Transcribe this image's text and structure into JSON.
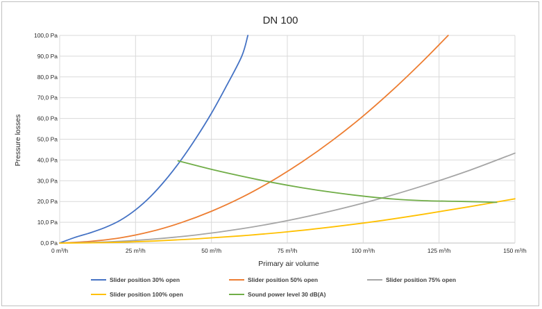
{
  "chart_data": {
    "type": "line",
    "title": "DN 100",
    "xlabel": "Primary air volume",
    "ylabel": "Pressure losses",
    "xlim": [
      0,
      150
    ],
    "ylim": [
      0,
      100
    ],
    "x_ticks": [
      0,
      25,
      50,
      75,
      100,
      125,
      150
    ],
    "x_tick_labels": [
      "0 m³/h",
      "25 m³/h",
      "50 m³/h",
      "75 m³/h",
      "100 m³/h",
      "125 m³/h",
      "150 m³/h"
    ],
    "y_ticks": [
      0,
      10,
      20,
      30,
      40,
      50,
      60,
      70,
      80,
      90,
      100
    ],
    "y_tick_labels": [
      "0,0 Pa",
      "10,0 Pa",
      "20,0 Pa",
      "30,0 Pa",
      "40,0 Pa",
      "50,0 Pa",
      "60,0 Pa",
      "70,0 Pa",
      "80,0 Pa",
      "90,0 Pa",
      "100,0 Pa"
    ],
    "grid": true,
    "legend_position": "bottom",
    "series": [
      {
        "name": "Slider position 30% open",
        "color": "#4472c4",
        "points": [
          [
            0,
            0
          ],
          [
            5,
            2.7
          ],
          [
            10,
            4.9
          ],
          [
            15,
            7.5
          ],
          [
            20,
            11
          ],
          [
            25,
            16
          ],
          [
            30,
            22.5
          ],
          [
            35,
            30.6
          ],
          [
            40,
            40
          ],
          [
            45,
            50.7
          ],
          [
            50,
            62.5
          ],
          [
            55,
            75.8
          ],
          [
            60,
            90
          ],
          [
            62,
            100
          ]
        ]
      },
      {
        "name": "Slider position 50% open",
        "color": "#ed7d31",
        "points": [
          [
            0,
            0
          ],
          [
            10,
            0.8
          ],
          [
            20,
            2.5
          ],
          [
            30,
            5.5
          ],
          [
            40,
            9.8
          ],
          [
            50,
            15.3
          ],
          [
            60,
            22
          ],
          [
            70,
            30
          ],
          [
            80,
            39.2
          ],
          [
            90,
            49.6
          ],
          [
            100,
            61.2
          ],
          [
            110,
            74.1
          ],
          [
            120,
            88.1
          ],
          [
            128,
            100
          ]
        ]
      },
      {
        "name": "Slider position 75% open",
        "color": "#a5a5a5",
        "points": [
          [
            0,
            0
          ],
          [
            15,
            0.5
          ],
          [
            30,
            1.8
          ],
          [
            45,
            3.9
          ],
          [
            60,
            6.9
          ],
          [
            75,
            10.8
          ],
          [
            90,
            15.6
          ],
          [
            105,
            21.2
          ],
          [
            120,
            27.7
          ],
          [
            135,
            35
          ],
          [
            150,
            43.3
          ]
        ]
      },
      {
        "name": "Slider position 100% open",
        "color": "#ffc000",
        "points": [
          [
            0,
            0
          ],
          [
            15,
            0.2
          ],
          [
            30,
            0.9
          ],
          [
            45,
            2
          ],
          [
            60,
            3.5
          ],
          [
            75,
            5.4
          ],
          [
            90,
            7.8
          ],
          [
            105,
            10.6
          ],
          [
            120,
            13.9
          ],
          [
            135,
            17.5
          ],
          [
            150,
            21.3
          ]
        ]
      },
      {
        "name": "Sound power level 30 dB(A)",
        "color": "#70ad47",
        "points": [
          [
            39,
            39.6
          ],
          [
            50,
            35.5
          ],
          [
            60,
            32.2
          ],
          [
            70,
            29.2
          ],
          [
            80,
            26.6
          ],
          [
            90,
            24.4
          ],
          [
            100,
            22.6
          ],
          [
            110,
            21.2
          ],
          [
            120,
            20.4
          ],
          [
            130,
            20.1
          ],
          [
            140,
            19.8
          ],
          [
            144,
            19.6
          ]
        ]
      }
    ]
  }
}
